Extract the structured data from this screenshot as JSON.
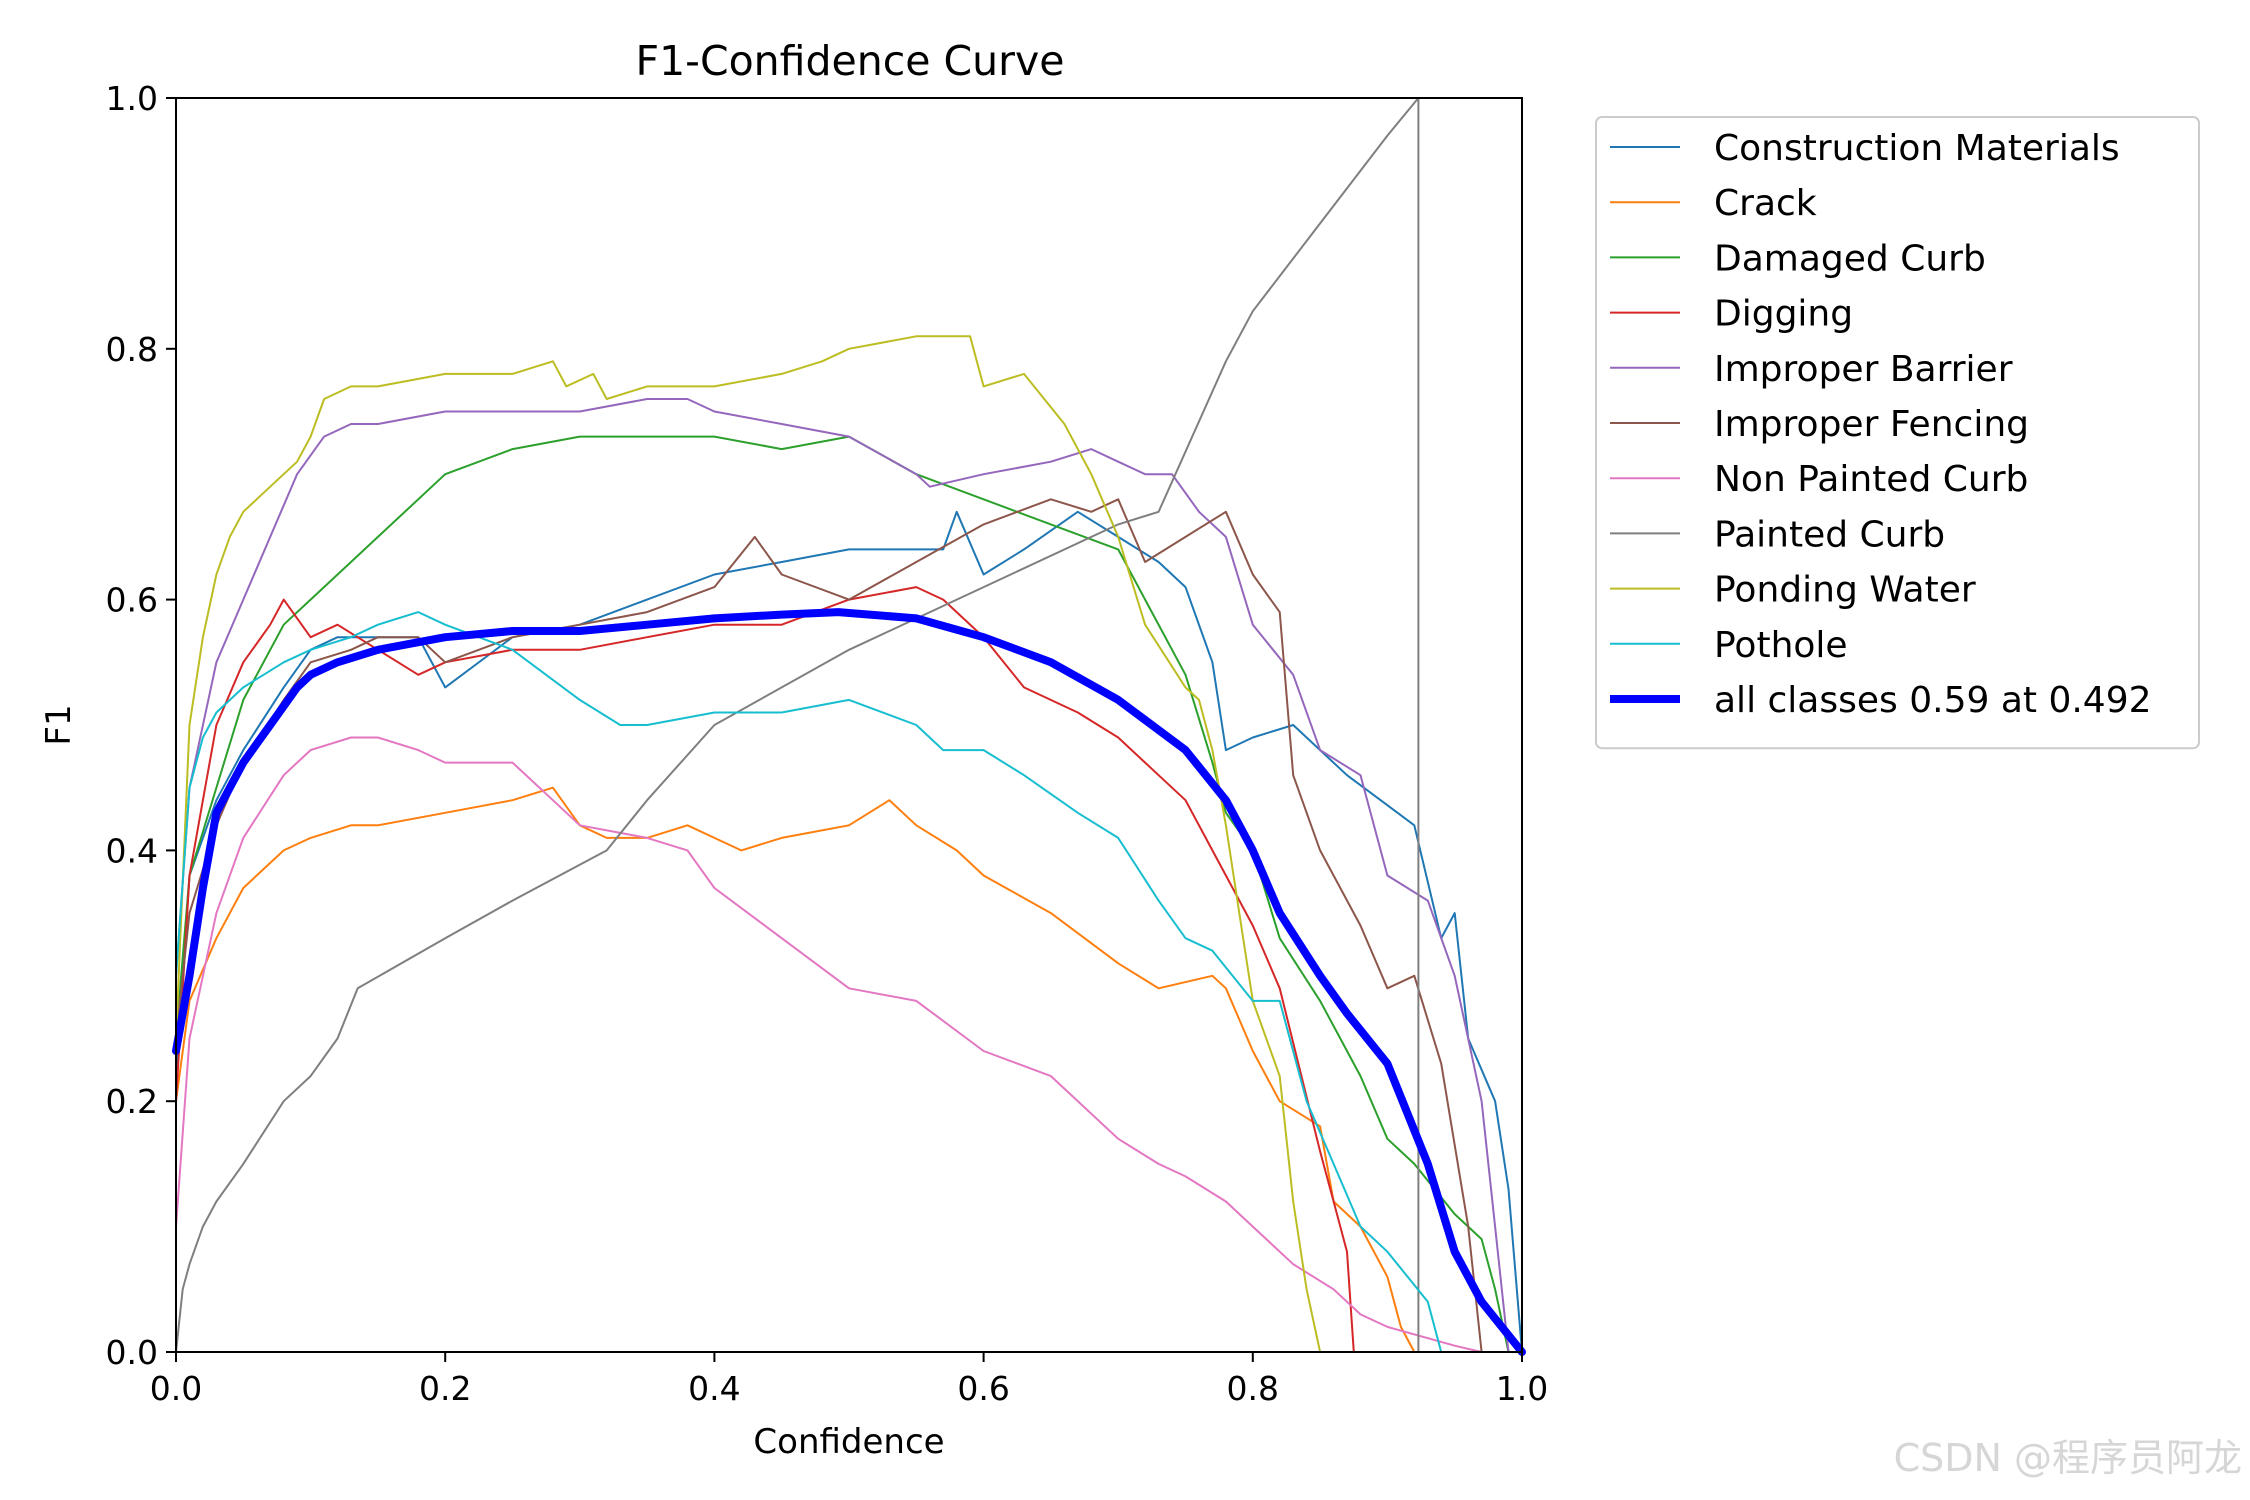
{
  "watermark": "CSDN @程序员阿龙",
  "chart_data": {
    "type": "line",
    "title": "F1-Confidence Curve",
    "xlabel": "Confidence",
    "ylabel": "F1",
    "xlim": [
      0,
      1
    ],
    "ylim": [
      0,
      1
    ],
    "xticks": [
      0.0,
      0.2,
      0.4,
      0.6,
      0.8,
      1.0
    ],
    "yticks": [
      0.0,
      0.2,
      0.4,
      0.6,
      0.8,
      1.0
    ],
    "tick_labels_x": [
      "0.0",
      "0.2",
      "0.4",
      "0.6",
      "0.8",
      "1.0"
    ],
    "tick_labels_y": [
      "0.0",
      "0.2",
      "0.4",
      "0.6",
      "0.8",
      "1.0"
    ],
    "grid": false,
    "legend_position": "outside-right-top",
    "series": [
      {
        "name": "Construction Materials",
        "color": "#1f77b4",
        "width": 2,
        "x": [
          0,
          0.01,
          0.03,
          0.05,
          0.08,
          0.1,
          0.12,
          0.15,
          0.18,
          0.2,
          0.25,
          0.3,
          0.35,
          0.4,
          0.45,
          0.5,
          0.57,
          0.58,
          0.6,
          0.63,
          0.67,
          0.7,
          0.73,
          0.75,
          0.77,
          0.78,
          0.8,
          0.83,
          0.87,
          0.92,
          0.94,
          0.95,
          0.96,
          0.98,
          0.99,
          1.0
        ],
        "y": [
          0.22,
          0.38,
          0.44,
          0.48,
          0.53,
          0.56,
          0.57,
          0.57,
          0.57,
          0.53,
          0.57,
          0.58,
          0.6,
          0.62,
          0.63,
          0.64,
          0.64,
          0.67,
          0.62,
          0.64,
          0.67,
          0.65,
          0.63,
          0.61,
          0.55,
          0.48,
          0.49,
          0.5,
          0.46,
          0.42,
          0.33,
          0.35,
          0.25,
          0.2,
          0.13,
          0.0
        ]
      },
      {
        "name": "Crack",
        "color": "#ff7f0e",
        "width": 2,
        "x": [
          0,
          0.01,
          0.03,
          0.05,
          0.08,
          0.1,
          0.13,
          0.15,
          0.2,
          0.25,
          0.28,
          0.3,
          0.32,
          0.35,
          0.38,
          0.4,
          0.42,
          0.45,
          0.5,
          0.53,
          0.55,
          0.58,
          0.6,
          0.65,
          0.7,
          0.73,
          0.77,
          0.78,
          0.8,
          0.82,
          0.85,
          0.86,
          0.88,
          0.9,
          0.91,
          0.92
        ],
        "y": [
          0.2,
          0.28,
          0.33,
          0.37,
          0.4,
          0.41,
          0.42,
          0.42,
          0.43,
          0.44,
          0.45,
          0.42,
          0.41,
          0.41,
          0.42,
          0.41,
          0.4,
          0.41,
          0.42,
          0.44,
          0.42,
          0.4,
          0.38,
          0.35,
          0.31,
          0.29,
          0.3,
          0.29,
          0.24,
          0.2,
          0.18,
          0.12,
          0.1,
          0.06,
          0.02,
          0.0
        ]
      },
      {
        "name": "Damaged Curb",
        "color": "#2ca02c",
        "width": 2,
        "x": [
          0,
          0.01,
          0.03,
          0.05,
          0.08,
          0.1,
          0.13,
          0.15,
          0.2,
          0.25,
          0.3,
          0.35,
          0.4,
          0.45,
          0.5,
          0.55,
          0.6,
          0.65,
          0.7,
          0.72,
          0.75,
          0.77,
          0.78,
          0.8,
          0.82,
          0.85,
          0.88,
          0.9,
          0.92,
          0.95,
          0.97,
          0.98,
          0.99
        ],
        "y": [
          0.25,
          0.38,
          0.45,
          0.52,
          0.58,
          0.6,
          0.63,
          0.65,
          0.7,
          0.72,
          0.73,
          0.73,
          0.73,
          0.72,
          0.73,
          0.7,
          0.68,
          0.66,
          0.64,
          0.6,
          0.54,
          0.47,
          0.43,
          0.4,
          0.33,
          0.28,
          0.22,
          0.17,
          0.15,
          0.11,
          0.09,
          0.05,
          0.0
        ]
      },
      {
        "name": "Digging",
        "color": "#d62728",
        "width": 2,
        "x": [
          0,
          0.01,
          0.02,
          0.03,
          0.05,
          0.07,
          0.08,
          0.1,
          0.12,
          0.15,
          0.18,
          0.2,
          0.25,
          0.3,
          0.35,
          0.4,
          0.45,
          0.5,
          0.55,
          0.57,
          0.6,
          0.63,
          0.67,
          0.7,
          0.73,
          0.75,
          0.77,
          0.78,
          0.8,
          0.82,
          0.85,
          0.86,
          0.87,
          0.875
        ],
        "y": [
          0.2,
          0.38,
          0.44,
          0.5,
          0.55,
          0.58,
          0.6,
          0.57,
          0.58,
          0.56,
          0.54,
          0.55,
          0.56,
          0.56,
          0.57,
          0.58,
          0.58,
          0.6,
          0.61,
          0.6,
          0.57,
          0.53,
          0.51,
          0.49,
          0.46,
          0.44,
          0.4,
          0.38,
          0.34,
          0.29,
          0.16,
          0.12,
          0.08,
          0.0
        ]
      },
      {
        "name": "Improper Barrier",
        "color": "#9467bd",
        "width": 2,
        "x": [
          0,
          0.01,
          0.03,
          0.05,
          0.07,
          0.09,
          0.11,
          0.13,
          0.15,
          0.2,
          0.25,
          0.3,
          0.35,
          0.38,
          0.4,
          0.45,
          0.5,
          0.55,
          0.56,
          0.6,
          0.65,
          0.68,
          0.7,
          0.72,
          0.74,
          0.76,
          0.78,
          0.8,
          0.83,
          0.85,
          0.88,
          0.9,
          0.93,
          0.95,
          0.97,
          0.98,
          0.99
        ],
        "y": [
          0.3,
          0.45,
          0.55,
          0.6,
          0.65,
          0.7,
          0.73,
          0.74,
          0.74,
          0.75,
          0.75,
          0.75,
          0.76,
          0.76,
          0.75,
          0.74,
          0.73,
          0.7,
          0.69,
          0.7,
          0.71,
          0.72,
          0.71,
          0.7,
          0.7,
          0.67,
          0.65,
          0.58,
          0.54,
          0.48,
          0.46,
          0.38,
          0.36,
          0.3,
          0.2,
          0.1,
          0.0
        ]
      },
      {
        "name": "Improper Fencing",
        "color": "#8c564b",
        "width": 2,
        "x": [
          0,
          0.01,
          0.03,
          0.05,
          0.08,
          0.1,
          0.13,
          0.15,
          0.18,
          0.2,
          0.25,
          0.3,
          0.35,
          0.4,
          0.43,
          0.45,
          0.5,
          0.55,
          0.6,
          0.65,
          0.68,
          0.7,
          0.72,
          0.75,
          0.78,
          0.8,
          0.82,
          0.83,
          0.85,
          0.88,
          0.9,
          0.92,
          0.94,
          0.96,
          0.97
        ],
        "y": [
          0.25,
          0.35,
          0.42,
          0.47,
          0.52,
          0.55,
          0.56,
          0.57,
          0.57,
          0.55,
          0.57,
          0.58,
          0.59,
          0.61,
          0.65,
          0.62,
          0.6,
          0.63,
          0.66,
          0.68,
          0.67,
          0.68,
          0.63,
          0.65,
          0.67,
          0.62,
          0.59,
          0.46,
          0.4,
          0.34,
          0.29,
          0.3,
          0.23,
          0.1,
          0.0
        ]
      },
      {
        "name": "Non Painted Curb",
        "color": "#e377c2",
        "width": 2,
        "x": [
          0,
          0.01,
          0.03,
          0.05,
          0.08,
          0.1,
          0.13,
          0.15,
          0.18,
          0.2,
          0.25,
          0.28,
          0.3,
          0.35,
          0.38,
          0.4,
          0.45,
          0.5,
          0.55,
          0.6,
          0.65,
          0.7,
          0.73,
          0.75,
          0.78,
          0.8,
          0.83,
          0.86,
          0.88,
          0.9,
          0.95,
          0.97
        ],
        "y": [
          0.1,
          0.25,
          0.35,
          0.41,
          0.46,
          0.48,
          0.49,
          0.49,
          0.48,
          0.47,
          0.47,
          0.44,
          0.42,
          0.41,
          0.4,
          0.37,
          0.33,
          0.29,
          0.28,
          0.24,
          0.22,
          0.17,
          0.15,
          0.14,
          0.12,
          0.1,
          0.07,
          0.05,
          0.03,
          0.02,
          0.005,
          0.0
        ]
      },
      {
        "name": "Painted Curb",
        "color": "#7f7f7f",
        "width": 2,
        "x": [
          0,
          0.005,
          0.01,
          0.02,
          0.03,
          0.05,
          0.08,
          0.1,
          0.12,
          0.135,
          0.2,
          0.25,
          0.32,
          0.35,
          0.4,
          0.5,
          0.6,
          0.7,
          0.73,
          0.78,
          0.8,
          0.85,
          0.9,
          0.923,
          0.923,
          0.93
        ],
        "y": [
          0,
          0.05,
          0.07,
          0.1,
          0.12,
          0.15,
          0.2,
          0.22,
          0.25,
          0.29,
          0.33,
          0.36,
          0.4,
          0.44,
          0.5,
          0.56,
          0.61,
          0.66,
          0.67,
          0.79,
          0.83,
          0.9,
          0.97,
          1.0,
          0.0,
          0.0
        ]
      },
      {
        "name": "Ponding Water",
        "color": "#bcbd22",
        "width": 2,
        "x": [
          0,
          0.01,
          0.02,
          0.03,
          0.04,
          0.05,
          0.07,
          0.09,
          0.1,
          0.11,
          0.13,
          0.15,
          0.2,
          0.25,
          0.28,
          0.29,
          0.31,
          0.32,
          0.35,
          0.4,
          0.45,
          0.48,
          0.5,
          0.55,
          0.59,
          0.6,
          0.63,
          0.66,
          0.68,
          0.7,
          0.72,
          0.75,
          0.76,
          0.77,
          0.78,
          0.79,
          0.8,
          0.82,
          0.83,
          0.84,
          0.85
        ],
        "y": [
          0.25,
          0.5,
          0.57,
          0.62,
          0.65,
          0.67,
          0.69,
          0.71,
          0.73,
          0.76,
          0.77,
          0.77,
          0.78,
          0.78,
          0.79,
          0.77,
          0.78,
          0.76,
          0.77,
          0.77,
          0.78,
          0.79,
          0.8,
          0.81,
          0.81,
          0.77,
          0.78,
          0.74,
          0.7,
          0.65,
          0.58,
          0.53,
          0.52,
          0.48,
          0.42,
          0.35,
          0.28,
          0.22,
          0.12,
          0.05,
          0.0
        ]
      },
      {
        "name": "Pothole",
        "color": "#17becf",
        "width": 2,
        "x": [
          0,
          0.01,
          0.02,
          0.03,
          0.05,
          0.08,
          0.1,
          0.13,
          0.15,
          0.18,
          0.2,
          0.25,
          0.3,
          0.33,
          0.35,
          0.4,
          0.45,
          0.5,
          0.55,
          0.57,
          0.6,
          0.63,
          0.67,
          0.7,
          0.73,
          0.75,
          0.77,
          0.8,
          0.82,
          0.84,
          0.86,
          0.88,
          0.9,
          0.93,
          0.94
        ],
        "y": [
          0.3,
          0.45,
          0.49,
          0.51,
          0.53,
          0.55,
          0.56,
          0.57,
          0.58,
          0.59,
          0.58,
          0.56,
          0.52,
          0.5,
          0.5,
          0.51,
          0.51,
          0.52,
          0.5,
          0.48,
          0.48,
          0.46,
          0.43,
          0.41,
          0.36,
          0.33,
          0.32,
          0.28,
          0.28,
          0.2,
          0.15,
          0.1,
          0.08,
          0.04,
          0.0
        ]
      },
      {
        "name": "all classes 0.59 at 0.492",
        "color": "#0000ff",
        "width": 8,
        "x": [
          0,
          0.01,
          0.02,
          0.03,
          0.04,
          0.05,
          0.07,
          0.09,
          0.1,
          0.12,
          0.15,
          0.2,
          0.25,
          0.3,
          0.35,
          0.4,
          0.45,
          0.492,
          0.55,
          0.6,
          0.65,
          0.7,
          0.75,
          0.78,
          0.8,
          0.82,
          0.85,
          0.87,
          0.9,
          0.93,
          0.95,
          0.97,
          1.0
        ],
        "y": [
          0.24,
          0.3,
          0.37,
          0.43,
          0.45,
          0.47,
          0.5,
          0.53,
          0.54,
          0.55,
          0.56,
          0.57,
          0.575,
          0.575,
          0.58,
          0.585,
          0.588,
          0.59,
          0.585,
          0.57,
          0.55,
          0.52,
          0.48,
          0.44,
          0.4,
          0.35,
          0.3,
          0.27,
          0.23,
          0.15,
          0.08,
          0.04,
          0.0
        ]
      }
    ]
  }
}
